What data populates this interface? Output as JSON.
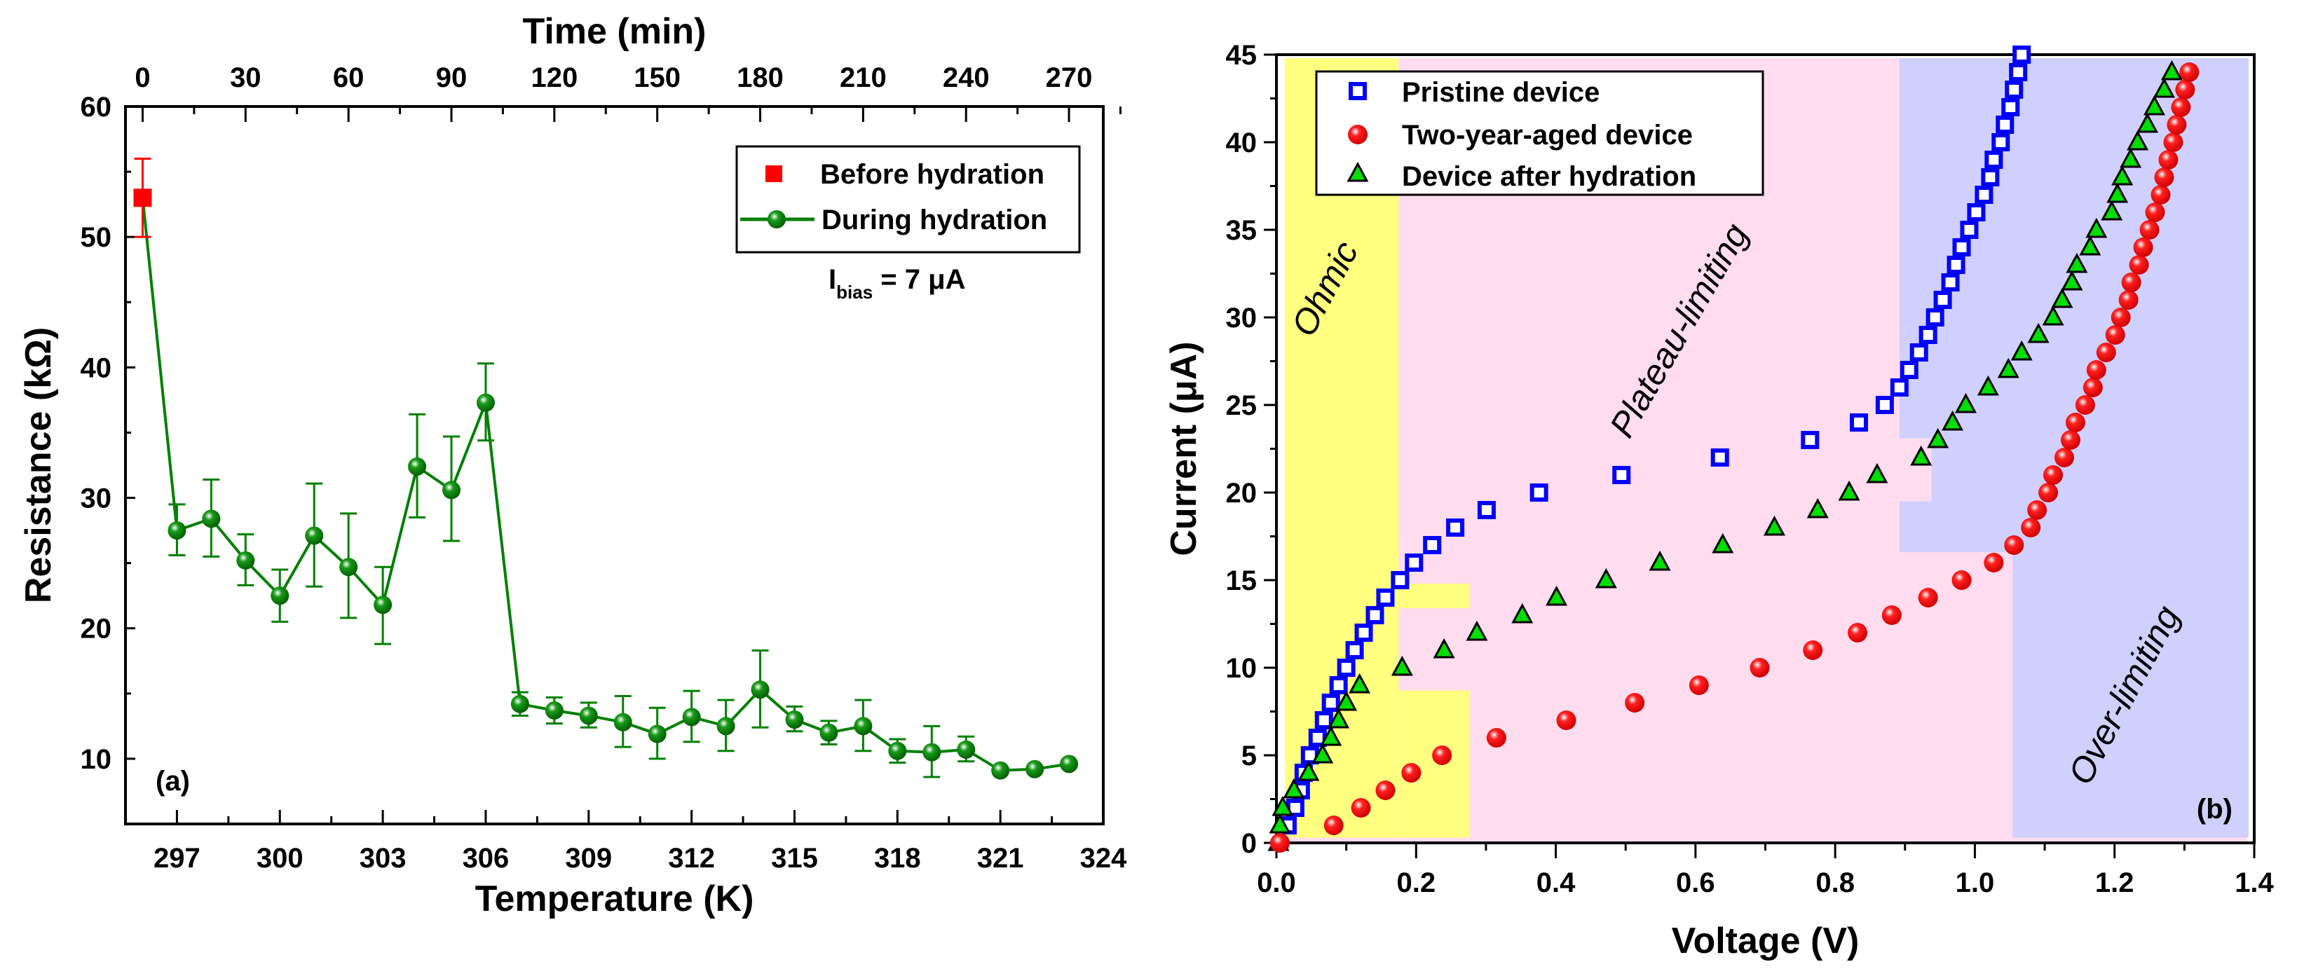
{
  "chart_data": [
    {
      "type": "scatter",
      "panel_label": "(a)",
      "xlabel": "Temperature (K)",
      "x2label": "Time (min)",
      "ylabel": "Resistance (kΩ)",
      "xlim": [
        295.5,
        324
      ],
      "ylim": [
        5,
        60
      ],
      "xticks": [
        297,
        300,
        303,
        306,
        309,
        312,
        315,
        318,
        321,
        324
      ],
      "x2ticks": [
        0,
        30,
        60,
        90,
        120,
        150,
        180,
        210,
        240,
        270
      ],
      "x2_relation": "time = (T - 296) * 10",
      "yticks": [
        10,
        20,
        30,
        40,
        50,
        60
      ],
      "annotation": {
        "main": "I",
        "sub": "bias",
        "rest": " = 7 μA"
      },
      "legend_position": "top-right",
      "colors": {
        "before": "#ff0000",
        "during": "#008000"
      },
      "series": [
        {
          "name": "Before hydration",
          "marker": "square",
          "points": [
            {
              "x": 296,
              "y": 53,
              "lo": 50,
              "hi": 56
            }
          ]
        },
        {
          "name": "During hydration",
          "marker": "sphere-line",
          "points": [
            {
              "x": 297,
              "y": 27.5,
              "lo": 25.6,
              "hi": 29.5
            },
            {
              "x": 298,
              "y": 28.4,
              "lo": 25.5,
              "hi": 31.4
            },
            {
              "x": 299,
              "y": 25.2,
              "lo": 23.3,
              "hi": 27.2
            },
            {
              "x": 300,
              "y": 22.5,
              "lo": 20.5,
              "hi": 24.5
            },
            {
              "x": 301,
              "y": 27.1,
              "lo": 23.2,
              "hi": 31.1
            },
            {
              "x": 302,
              "y": 24.7,
              "lo": 20.8,
              "hi": 28.8
            },
            {
              "x": 303,
              "y": 21.8,
              "lo": 18.8,
              "hi": 24.7
            },
            {
              "x": 304,
              "y": 32.4,
              "lo": 28.5,
              "hi": 36.4
            },
            {
              "x": 305,
              "y": 30.6,
              "lo": 26.7,
              "hi": 34.7
            },
            {
              "x": 306,
              "y": 37.3,
              "lo": 34.4,
              "hi": 40.3
            },
            {
              "x": 307,
              "y": 14.2,
              "lo": 13.3,
              "hi": 15.1
            },
            {
              "x": 308,
              "y": 13.7,
              "lo": 12.7,
              "hi": 14.7
            },
            {
              "x": 309,
              "y": 13.3,
              "lo": 12.4,
              "hi": 14.3
            },
            {
              "x": 310,
              "y": 12.8,
              "lo": 10.9,
              "hi": 14.8
            },
            {
              "x": 311,
              "y": 11.9,
              "lo": 10.0,
              "hi": 13.9
            },
            {
              "x": 312,
              "y": 13.2,
              "lo": 11.3,
              "hi": 15.2
            },
            {
              "x": 313,
              "y": 12.5,
              "lo": 10.6,
              "hi": 14.5
            },
            {
              "x": 314,
              "y": 15.3,
              "lo": 12.4,
              "hi": 18.3
            },
            {
              "x": 315,
              "y": 13.0,
              "lo": 12.1,
              "hi": 14.0
            },
            {
              "x": 316,
              "y": 12.0,
              "lo": 11.1,
              "hi": 12.9
            },
            {
              "x": 317,
              "y": 12.5,
              "lo": 10.6,
              "hi": 14.5
            },
            {
              "x": 318,
              "y": 10.6,
              "lo": 9.7,
              "hi": 11.5
            },
            {
              "x": 319,
              "y": 10.5,
              "lo": 8.6,
              "hi": 12.5
            },
            {
              "x": 320,
              "y": 10.7,
              "lo": 9.8,
              "hi": 11.7
            },
            {
              "x": 321,
              "y": 9.1,
              "lo": 9.1,
              "hi": 9.1
            },
            {
              "x": 322,
              "y": 9.2,
              "lo": 9.2,
              "hi": 9.2
            },
            {
              "x": 323,
              "y": 9.6,
              "lo": 9.6,
              "hi": 9.6
            }
          ]
        }
      ]
    },
    {
      "type": "scatter",
      "panel_label": "(b)",
      "xlabel": "Voltage (V)",
      "ylabel": "Current (μA)",
      "xlim": [
        0,
        1.4
      ],
      "ylim": [
        0,
        45
      ],
      "xticks": [
        0.0,
        0.2,
        0.4,
        0.6,
        0.8,
        1.0,
        1.2,
        1.4
      ],
      "xtick_labels": [
        "0.0",
        "0.2",
        "0.4",
        "0.6",
        "0.8",
        "1.0",
        "1.2",
        "1.4"
      ],
      "yticks": [
        0,
        5,
        10,
        15,
        20,
        25,
        30,
        35,
        40,
        45
      ],
      "legend_position": "top-left",
      "regions": [
        {
          "name": "Ohmic",
          "color": "#ffff80"
        },
        {
          "name": "Plateau-limiting",
          "color": "#ffdcee"
        },
        {
          "name": "Over-limiting",
          "color": "#d0d0ff"
        }
      ],
      "region_extents": {
        "pink": [
          [
            0.012,
            0
          ],
          [
            1.39,
            0
          ],
          [
            1.39,
            44.8
          ],
          [
            0.012,
            44.8
          ]
        ],
        "yellow": [
          [
            [
              0.012,
              0.3
            ],
            [
              0.175,
              0.3
            ],
            [
              0.175,
              44.8
            ],
            [
              0.012,
              44.8
            ]
          ],
          [
            [
              0.175,
              13.4
            ],
            [
              0.277,
              13.4
            ],
            [
              0.277,
              14.8
            ],
            [
              0.175,
              14.8
            ]
          ],
          [
            [
              0.175,
              0.3
            ],
            [
              0.277,
              0.3
            ],
            [
              0.277,
              8.7
            ],
            [
              0.175,
              8.7
            ]
          ]
        ],
        "blue": [
          [
            0.892,
            44.8
          ],
          [
            1.392,
            44.8
          ],
          [
            1.392,
            0.3
          ],
          [
            1.054,
            0.3
          ],
          [
            1.054,
            16.6
          ],
          [
            0.892,
            16.6
          ],
          [
            0.892,
            19.5
          ],
          [
            0.938,
            19.5
          ],
          [
            0.938,
            23.1
          ],
          [
            0.892,
            23.1
          ]
        ]
      },
      "colors": {
        "pristine": "#0000ff",
        "aged": "#ff0000",
        "hydrated": "#00dd00"
      },
      "series": [
        {
          "name": "Pristine device",
          "marker": "open-square",
          "I": [
            1,
            2,
            3,
            4,
            5,
            6,
            7,
            8,
            9,
            10,
            11,
            12,
            13,
            14,
            15,
            16,
            17,
            18,
            19,
            20,
            21,
            22,
            23,
            24,
            25,
            26,
            27,
            28,
            29,
            30,
            31,
            32,
            33,
            34,
            35,
            36,
            37,
            38,
            39,
            40,
            41,
            42,
            43,
            44,
            45
          ],
          "V": [
            0.016,
            0.027,
            0.035,
            0.039,
            0.048,
            0.059,
            0.068,
            0.078,
            0.089,
            0.1,
            0.112,
            0.125,
            0.141,
            0.156,
            0.177,
            0.197,
            0.223,
            0.256,
            0.301,
            0.376,
            0.494,
            0.635,
            0.764,
            0.834,
            0.871,
            0.892,
            0.906,
            0.92,
            0.933,
            0.943,
            0.954,
            0.965,
            0.973,
            0.981,
            0.992,
            1.002,
            1.013,
            1.022,
            1.027,
            1.037,
            1.043,
            1.051,
            1.056,
            1.062,
            1.067
          ]
        },
        {
          "name": "Two-year-aged device",
          "marker": "sphere",
          "I": [
            0,
            1,
            2,
            3,
            4,
            5,
            6,
            7,
            8,
            9,
            10,
            11,
            12,
            13,
            14,
            15,
            16,
            17,
            18,
            19,
            20,
            21,
            22,
            23,
            24,
            25,
            26,
            27,
            28,
            29,
            30,
            31,
            32,
            33,
            34,
            35,
            36,
            37,
            38,
            39,
            40,
            41,
            42,
            43,
            44
          ],
          "V": [
            0.005,
            0.082,
            0.121,
            0.156,
            0.193,
            0.237,
            0.315,
            0.415,
            0.513,
            0.605,
            0.692,
            0.768,
            0.832,
            0.881,
            0.933,
            0.981,
            1.027,
            1.056,
            1.08,
            1.089,
            1.105,
            1.112,
            1.128,
            1.137,
            1.144,
            1.158,
            1.169,
            1.174,
            1.188,
            1.201,
            1.209,
            1.22,
            1.224,
            1.235,
            1.241,
            1.25,
            1.258,
            1.266,
            1.271,
            1.277,
            1.284,
            1.289,
            1.295,
            1.301,
            1.307
          ]
        },
        {
          "name": "Device after hydration",
          "marker": "triangle",
          "I": [
            0,
            1,
            2,
            3,
            4,
            5,
            6,
            7,
            8,
            9,
            10,
            11,
            12,
            13,
            14,
            15,
            16,
            17,
            18,
            19,
            20,
            21,
            22,
            23,
            24,
            25,
            26,
            27,
            28,
            29,
            30,
            31,
            32,
            33,
            34,
            35,
            36,
            37,
            38,
            39,
            40,
            41,
            42,
            43,
            44
          ],
          "V": [
            0.003,
            0.005,
            0.009,
            0.025,
            0.046,
            0.066,
            0.078,
            0.089,
            0.1,
            0.119,
            0.18,
            0.24,
            0.287,
            0.352,
            0.401,
            0.472,
            0.549,
            0.639,
            0.713,
            0.775,
            0.82,
            0.86,
            0.923,
            0.947,
            0.968,
            0.987,
            1.019,
            1.048,
            1.067,
            1.091,
            1.112,
            1.125,
            1.139,
            1.146,
            1.165,
            1.174,
            1.196,
            1.204,
            1.211,
            1.223,
            1.233,
            1.247,
            1.257,
            1.271,
            1.282
          ]
        }
      ]
    }
  ]
}
